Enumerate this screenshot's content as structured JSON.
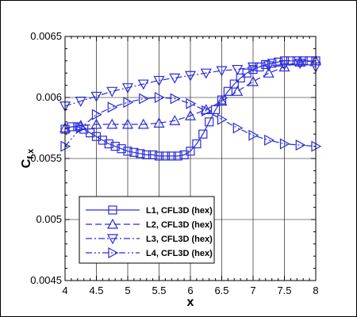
{
  "chart_data": {
    "type": "line",
    "xlabel": "x",
    "ylabel": "C",
    "ylabel_sub": "f,x",
    "xlim": [
      4,
      8
    ],
    "ylim": [
      0.0045,
      0.0065
    ],
    "xticks": [
      4,
      4.5,
      5,
      5.5,
      6,
      6.5,
      7,
      7.5,
      8
    ],
    "xtick_labels": [
      "4",
      "4.5",
      "5",
      "5.5",
      "6",
      "6.5",
      "7",
      "7.5",
      "8"
    ],
    "yticks": [
      0.0045,
      0.005,
      0.0055,
      0.006,
      0.0065
    ],
    "ytick_labels": [
      "0.0045",
      "0.005",
      "0.0055",
      "0.006",
      "0.0065"
    ],
    "grid": true,
    "legend_position": "bottom-left",
    "color": "#2b2bd9",
    "series": [
      {
        "name": "L1, CFL3D (hex)",
        "line_style": "solid",
        "marker": "square",
        "x": [
          4.0,
          4.1,
          4.2,
          4.3,
          4.4,
          4.5,
          4.6,
          4.7,
          4.8,
          4.9,
          5.0,
          5.1,
          5.2,
          5.3,
          5.4,
          5.5,
          5.6,
          5.7,
          5.8,
          5.9,
          6.0,
          6.1,
          6.2,
          6.3,
          6.4,
          6.5,
          6.6,
          6.7,
          6.8,
          6.9,
          7.0,
          7.1,
          7.2,
          7.3,
          7.4,
          7.5,
          7.6,
          7.7,
          7.8,
          7.9,
          8.0
        ],
        "y": [
          0.00574,
          0.00576,
          0.00576,
          0.00574,
          0.00571,
          0.00568,
          0.00565,
          0.00562,
          0.0056,
          0.00558,
          0.00556,
          0.00555,
          0.00554,
          0.00553,
          0.00553,
          0.00552,
          0.00552,
          0.00552,
          0.00552,
          0.00553,
          0.00556,
          0.00562,
          0.0057,
          0.0058,
          0.0059,
          0.00598,
          0.00605,
          0.00611,
          0.00616,
          0.0062,
          0.00623,
          0.00625,
          0.00627,
          0.00628,
          0.00629,
          0.0063,
          0.0063,
          0.0063,
          0.0063,
          0.0063,
          0.0063
        ]
      },
      {
        "name": "L2, CFL3D (hex)",
        "line_style": "dashed",
        "marker": "triangle-up",
        "x": [
          4.0,
          4.25,
          4.5,
          4.75,
          5.0,
          5.25,
          5.5,
          5.75,
          6.0,
          6.25,
          6.5,
          6.75,
          7.0,
          7.25,
          7.5,
          7.75,
          8.0
        ],
        "y": [
          0.00575,
          0.00577,
          0.00578,
          0.00578,
          0.00578,
          0.00578,
          0.00579,
          0.00581,
          0.00585,
          0.0059,
          0.00597,
          0.00605,
          0.00613,
          0.0062,
          0.00625,
          0.00629,
          0.0063
        ]
      },
      {
        "name": "L3, CFL3D (hex)",
        "line_style": "dashdot",
        "marker": "triangle-down",
        "x": [
          4.0,
          4.25,
          4.5,
          4.75,
          5.0,
          5.25,
          5.5,
          5.75,
          6.0,
          6.25,
          6.5,
          6.75,
          7.0,
          7.25,
          7.5,
          7.75,
          8.0
        ],
        "y": [
          0.00593,
          0.00597,
          0.00601,
          0.00605,
          0.00608,
          0.00611,
          0.00614,
          0.00616,
          0.00618,
          0.0062,
          0.00622,
          0.00623,
          0.00625,
          0.00626,
          0.00627,
          0.00628,
          0.00625
        ]
      },
      {
        "name": "L4, CFL3D (hex)",
        "line_style": "dashdotdot",
        "marker": "triangle-right",
        "x": [
          4.0,
          4.25,
          4.5,
          4.75,
          5.0,
          5.25,
          5.5,
          5.75,
          6.0,
          6.25,
          6.5,
          6.75,
          7.0,
          7.25,
          7.5,
          7.75,
          8.0
        ],
        "y": [
          0.0056,
          0.00575,
          0.00586,
          0.00592,
          0.00596,
          0.00599,
          0.006,
          0.00599,
          0.00595,
          0.00589,
          0.00582,
          0.00575,
          0.00569,
          0.00565,
          0.00562,
          0.00561,
          0.0056
        ]
      }
    ]
  }
}
